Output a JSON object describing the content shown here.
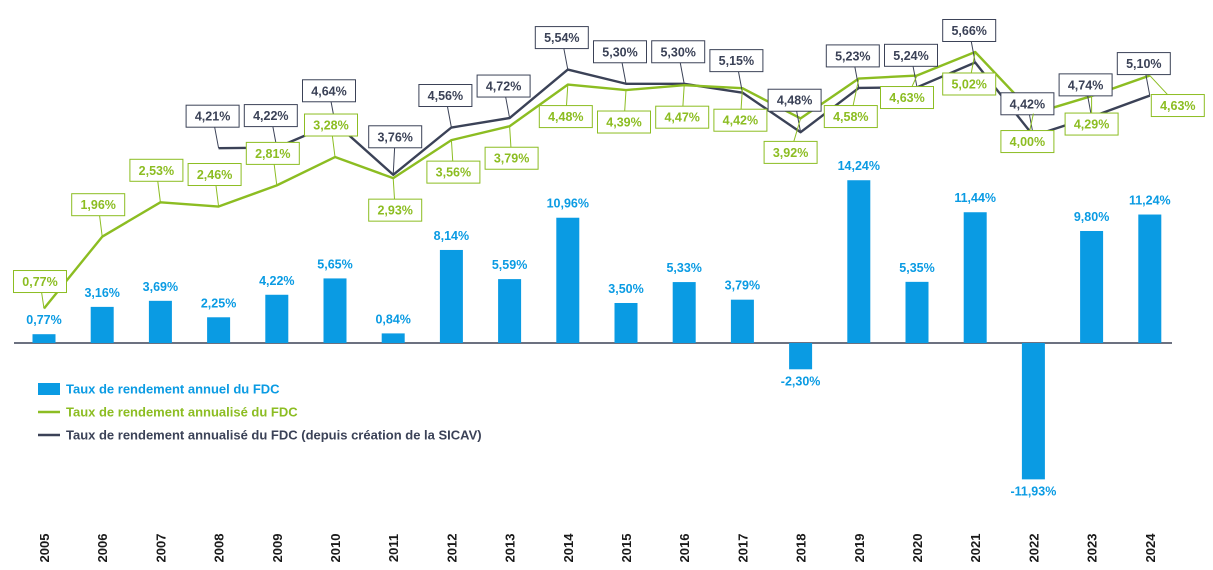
{
  "chart_data": {
    "type": "bar",
    "categories": [
      "2005",
      "2006",
      "2007",
      "2008",
      "2009",
      "2010",
      "2011",
      "2012",
      "2013",
      "2014",
      "2015",
      "2016",
      "2017",
      "2018",
      "2019",
      "2020",
      "2021",
      "2022",
      "2023",
      "2024"
    ],
    "series": [
      {
        "name": "Taux de rendement annuel du FDC",
        "type": "bar",
        "color": "#0a9be3",
        "values": [
          0.77,
          3.16,
          3.69,
          2.25,
          4.22,
          5.65,
          0.84,
          8.14,
          5.59,
          10.96,
          3.5,
          5.33,
          3.79,
          -2.3,
          14.24,
          5.35,
          11.44,
          -11.93,
          9.8,
          11.24
        ],
        "labels": [
          "0,77%",
          "3,16%",
          "3,69%",
          "2,25%",
          "4,22%",
          "5,65%",
          "0,84%",
          "8,14%",
          "5,59%",
          "10,96%",
          "3,50%",
          "5,33%",
          "3,79%",
          "-2,30%",
          "14,24%",
          "5,35%",
          "11,44%",
          "-11,93%",
          "9,80%",
          "11,24%"
        ]
      },
      {
        "name": "Taux de rendement annualisé du FDC",
        "type": "line",
        "color": "#8cbd22",
        "values": [
          0.77,
          1.96,
          2.53,
          2.46,
          2.81,
          3.28,
          2.93,
          3.56,
          3.79,
          4.48,
          4.39,
          4.47,
          4.42,
          3.92,
          4.58,
          4.63,
          5.02,
          4.0,
          4.29,
          4.63
        ],
        "labels": [
          "0,77%",
          "1,96%",
          "2,53%",
          "2,46%",
          "2,81%",
          "3,28%",
          "2,93%",
          "3,56%",
          "3,79%",
          "4,48%",
          "4,39%",
          "4,47%",
          "4,42%",
          "3,92%",
          "4,58%",
          "4,63%",
          "5,02%",
          "4,00%",
          "4,29%",
          "4,63%"
        ]
      },
      {
        "name": "Taux de rendement annualisé du FDC (depuis création de la SICAV)",
        "type": "line",
        "color": "#3b4257",
        "values": [
          null,
          null,
          null,
          4.21,
          4.22,
          4.64,
          3.76,
          4.56,
          4.72,
          5.54,
          5.3,
          5.3,
          5.15,
          4.48,
          5.23,
          5.24,
          5.66,
          4.42,
          4.74,
          5.1
        ],
        "labels": [
          null,
          null,
          null,
          "4,21%",
          "4,22%",
          "4,64%",
          "3,76%",
          "4,56%",
          "4,72%",
          "5,54%",
          "5,30%",
          "5,30%",
          "5,15%",
          "4,48%",
          "5,23%",
          "5,24%",
          "5,66%",
          "4,42%",
          "4,74%",
          "5,10%"
        ]
      }
    ],
    "legend_position": "left-middle",
    "grid": false
  }
}
